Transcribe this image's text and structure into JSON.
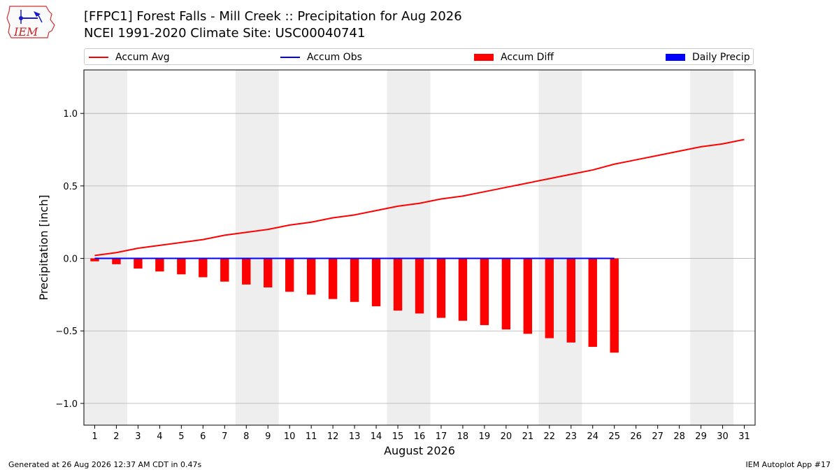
{
  "header": {
    "logo_text": "IEM",
    "title_line1": "[FFPC1] Forest Falls - Mill Creek :: Precipitation for Aug 2026",
    "title_line2": "NCEI 1991-2020 Climate Site: USC00040741"
  },
  "legend": {
    "items": [
      "Accum Avg",
      "Accum Obs",
      "Accum Diff",
      "Daily Precip"
    ],
    "placement": "top"
  },
  "footer": {
    "left": "Generated at 26 Aug 2026 12:37 AM CDT in 0.47s",
    "right": "IEM Autoplot App #17"
  },
  "colors": {
    "accum_avg": "#ff0000",
    "accum_obs": "#0000ff",
    "accum_diff": "#ff0000",
    "daily_precip": "#0000ff",
    "weekend_shade": "#eeeeee",
    "grid": "#b0b0b0"
  },
  "chart_data": {
    "type": "bar",
    "xlabel": "August 2026",
    "ylabel": "Precipitation [inch]",
    "ylim": [
      -1.15,
      1.3
    ],
    "yticks": [
      -1.0,
      -0.5,
      0.0,
      0.5,
      1.0
    ],
    "ytick_labels": [
      "−1.0",
      "−0.5",
      "0.0",
      "0.5",
      "1.0"
    ],
    "grid": "horizontal",
    "days": [
      1,
      2,
      3,
      4,
      5,
      6,
      7,
      8,
      9,
      10,
      11,
      12,
      13,
      14,
      15,
      16,
      17,
      18,
      19,
      20,
      21,
      22,
      23,
      24,
      25,
      26,
      27,
      28,
      29,
      30,
      31
    ],
    "shaded_day_ranges": [
      [
        1,
        2
      ],
      [
        8,
        9
      ],
      [
        15,
        16
      ],
      [
        22,
        23
      ],
      [
        29,
        30
      ]
    ],
    "series": [
      {
        "name": "Accum Avg",
        "kind": "line",
        "values": [
          0.02,
          0.04,
          0.07,
          0.09,
          0.11,
          0.13,
          0.16,
          0.18,
          0.2,
          0.23,
          0.25,
          0.28,
          0.3,
          0.33,
          0.36,
          0.38,
          0.41,
          0.43,
          0.46,
          0.49,
          0.52,
          0.55,
          0.58,
          0.61,
          0.65,
          0.68,
          0.71,
          0.74,
          0.77,
          0.79,
          0.82
        ]
      },
      {
        "name": "Accum Obs",
        "kind": "line",
        "values": [
          0,
          0,
          0,
          0,
          0,
          0,
          0,
          0,
          0,
          0,
          0,
          0,
          0,
          0,
          0,
          0,
          0,
          0,
          0,
          0,
          0,
          0,
          0,
          0,
          0
        ]
      },
      {
        "name": "Accum Diff",
        "kind": "bar",
        "values": [
          -0.02,
          -0.04,
          -0.07,
          -0.09,
          -0.11,
          -0.13,
          -0.16,
          -0.18,
          -0.2,
          -0.23,
          -0.25,
          -0.28,
          -0.3,
          -0.33,
          -0.36,
          -0.38,
          -0.41,
          -0.43,
          -0.46,
          -0.49,
          -0.52,
          -0.55,
          -0.58,
          -0.61,
          -0.65
        ]
      },
      {
        "name": "Daily Precip",
        "kind": "bar",
        "values": [
          0,
          0,
          0,
          0,
          0,
          0,
          0,
          0,
          0,
          0,
          0,
          0,
          0,
          0,
          0,
          0,
          0,
          0,
          0,
          0,
          0,
          0,
          0,
          0,
          0
        ]
      }
    ]
  }
}
